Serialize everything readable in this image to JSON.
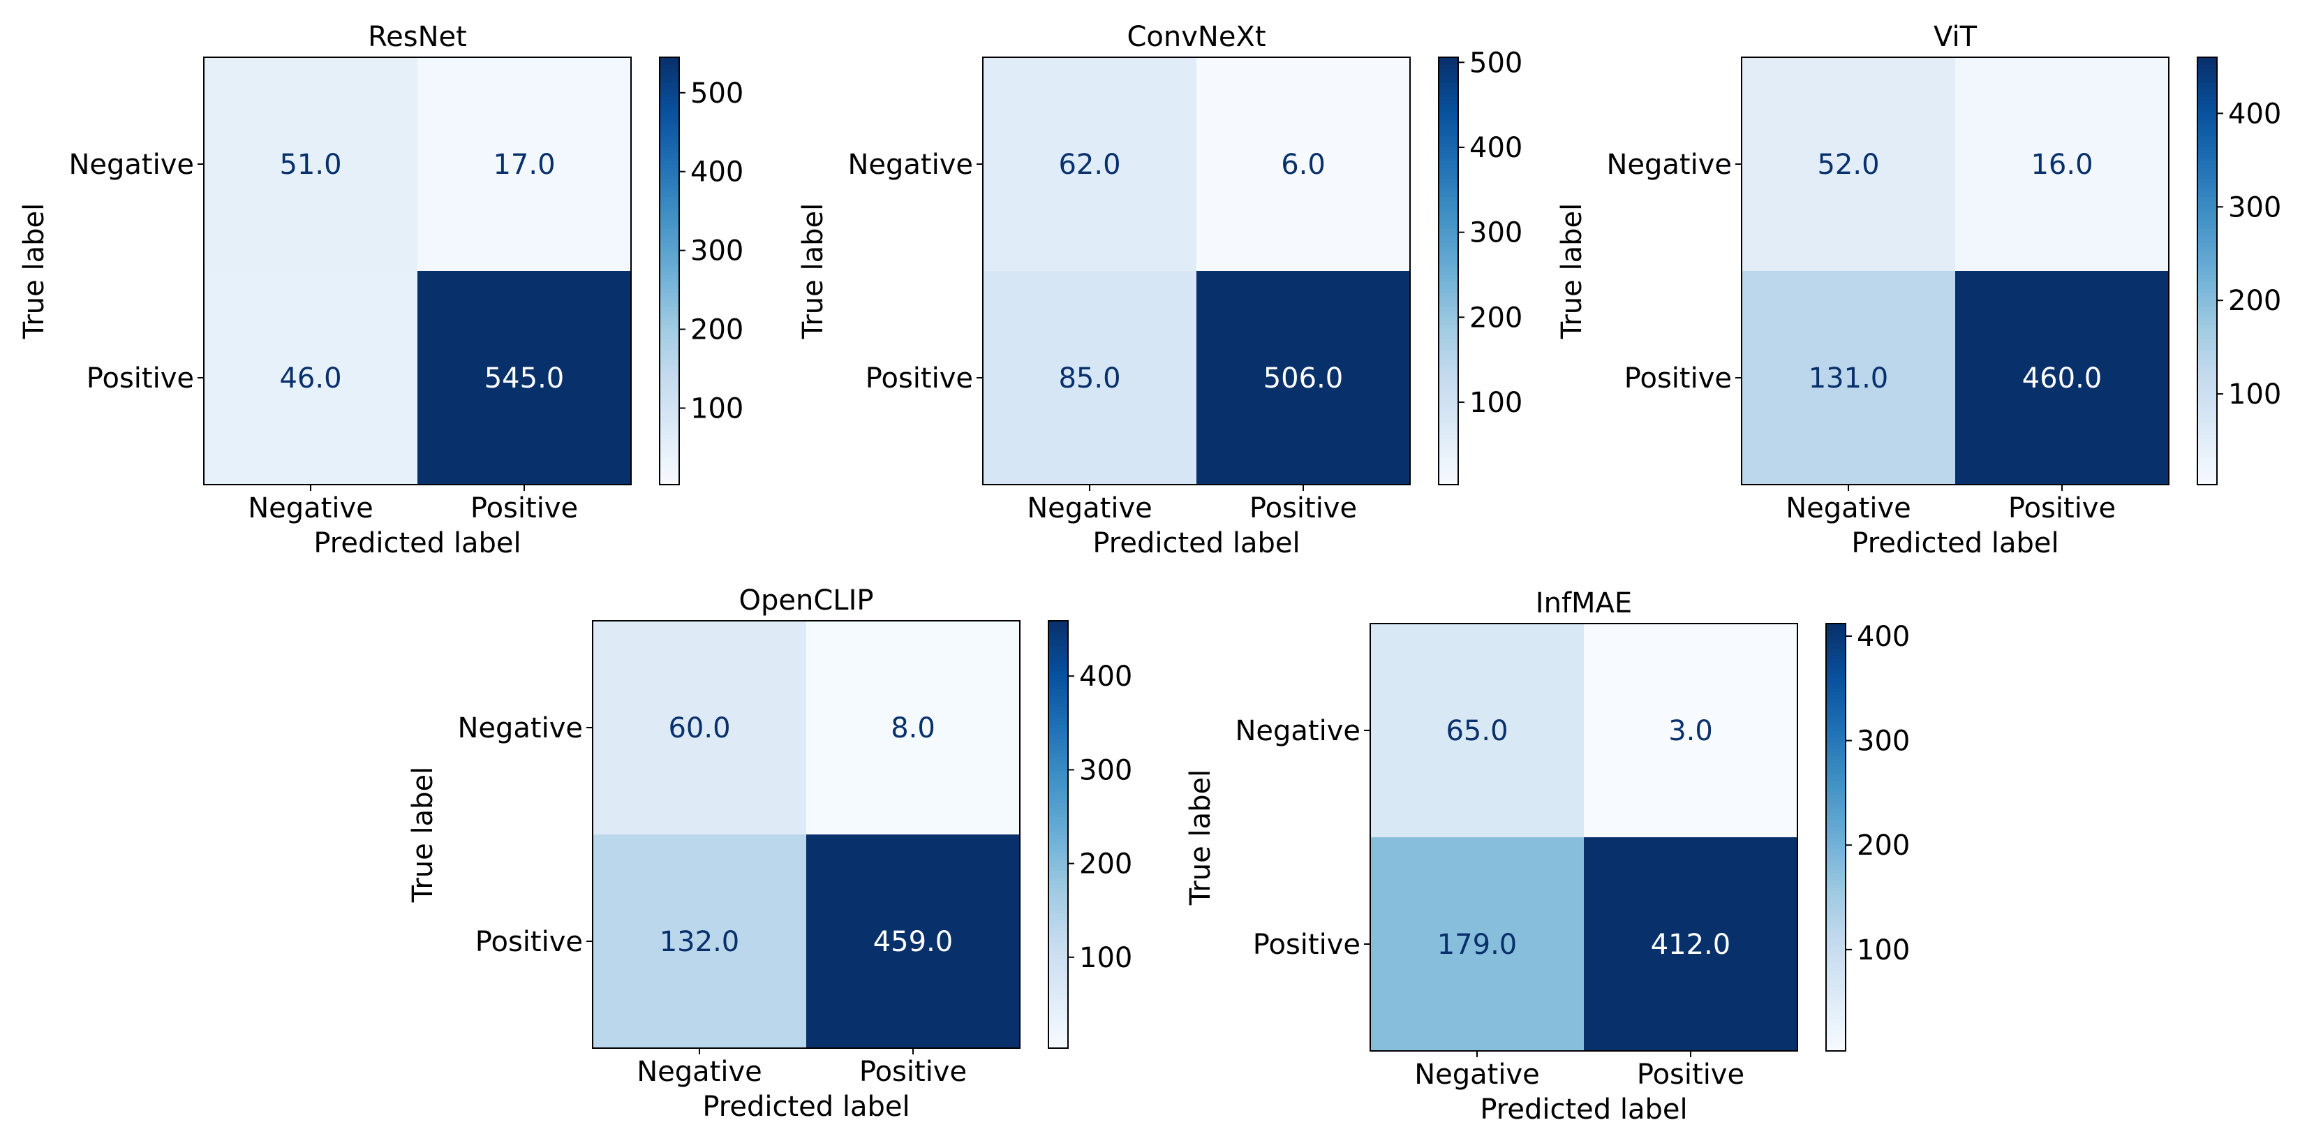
{
  "figure": {
    "colormap": "Blues",
    "colors": {
      "low": "#f7fbff",
      "high": "#08306b",
      "text_dark": "#08306b",
      "text_light": "#ffffff",
      "frame": "#000000"
    }
  },
  "chart_data": [
    {
      "type": "heatmap",
      "title": "ResNet",
      "xlabel": "Predicted label",
      "ylabel": "True label",
      "x_categories": [
        "Negative",
        "Positive"
      ],
      "y_categories": [
        "Negative",
        "Positive"
      ],
      "matrix": [
        [
          51.0,
          17.0
        ],
        [
          46.0,
          545.0
        ]
      ],
      "cell_labels": [
        [
          "51.0",
          "17.0"
        ],
        [
          "46.0",
          "545.0"
        ]
      ],
      "colorbar": {
        "range": [
          3,
          545
        ],
        "ticks": [
          100,
          200,
          300,
          400,
          500
        ],
        "tick_labels": [
          "100",
          "200",
          "300",
          "400",
          "500"
        ]
      }
    },
    {
      "type": "heatmap",
      "title": "ConvNeXt",
      "xlabel": "Predicted label",
      "ylabel": "True label",
      "x_categories": [
        "Negative",
        "Positive"
      ],
      "y_categories": [
        "Negative",
        "Positive"
      ],
      "matrix": [
        [
          62.0,
          6.0
        ],
        [
          85.0,
          506.0
        ]
      ],
      "cell_labels": [
        [
          "62.0",
          "6.0"
        ],
        [
          "85.0",
          "506.0"
        ]
      ],
      "colorbar": {
        "range": [
          3,
          506
        ],
        "ticks": [
          100,
          200,
          300,
          400,
          500
        ],
        "tick_labels": [
          "100",
          "200",
          "300",
          "400",
          "500"
        ]
      }
    },
    {
      "type": "heatmap",
      "title": "ViT",
      "xlabel": "Predicted label",
      "ylabel": "True label",
      "x_categories": [
        "Negative",
        "Positive"
      ],
      "y_categories": [
        "Negative",
        "Positive"
      ],
      "matrix": [
        [
          52.0,
          16.0
        ],
        [
          131.0,
          460.0
        ]
      ],
      "cell_labels": [
        [
          "52.0",
          "16.0"
        ],
        [
          "131.0",
          "460.0"
        ]
      ],
      "colorbar": {
        "range": [
          3,
          460
        ],
        "ticks": [
          100,
          200,
          300,
          400
        ],
        "tick_labels": [
          "100",
          "200",
          "300",
          "400"
        ]
      }
    },
    {
      "type": "heatmap",
      "title": "OpenCLIP",
      "xlabel": "Predicted label",
      "ylabel": "True label",
      "x_categories": [
        "Negative",
        "Positive"
      ],
      "y_categories": [
        "Negative",
        "Positive"
      ],
      "matrix": [
        [
          60.0,
          8.0
        ],
        [
          132.0,
          459.0
        ]
      ],
      "cell_labels": [
        [
          "60.0",
          "8.0"
        ],
        [
          "132.0",
          "459.0"
        ]
      ],
      "colorbar": {
        "range": [
          3,
          459
        ],
        "ticks": [
          100,
          200,
          300,
          400
        ],
        "tick_labels": [
          "100",
          "200",
          "300",
          "400"
        ]
      }
    },
    {
      "type": "heatmap",
      "title": "InfMAE",
      "xlabel": "Predicted label",
      "ylabel": "True label",
      "x_categories": [
        "Negative",
        "Positive"
      ],
      "y_categories": [
        "Negative",
        "Positive"
      ],
      "matrix": [
        [
          65.0,
          3.0
        ],
        [
          179.0,
          412.0
        ]
      ],
      "cell_labels": [
        [
          "65.0",
          "3.0"
        ],
        [
          "179.0",
          "412.0"
        ]
      ],
      "colorbar": {
        "range": [
          3,
          412
        ],
        "ticks": [
          100,
          200,
          300,
          400
        ],
        "tick_labels": [
          "100",
          "200",
          "300",
          "400"
        ]
      }
    }
  ]
}
